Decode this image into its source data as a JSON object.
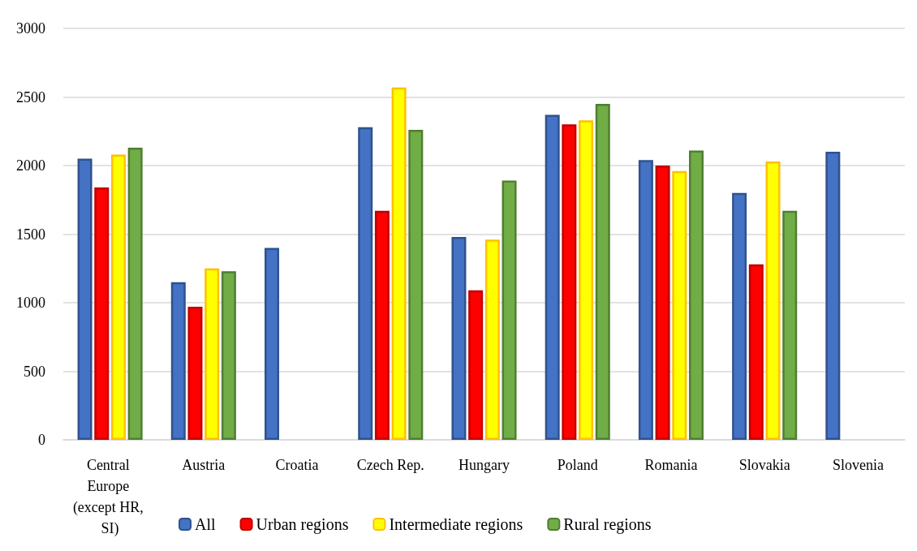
{
  "chart_data": {
    "type": "bar",
    "categories": [
      "Central Europe (except HR, SI)",
      "Austria",
      "Croatia",
      "Czech Rep.",
      "Hungary",
      "Poland",
      "Romania",
      "Slovakia",
      "Slovenia"
    ],
    "series": [
      {
        "name": "All",
        "color": "#4472c4",
        "values": [
          2050,
          1150,
          1400,
          2280,
          1480,
          2370,
          2040,
          1800,
          2100
        ]
      },
      {
        "name": "Urban regions",
        "color": "#ff0000",
        "values": [
          1840,
          970,
          null,
          1670,
          1090,
          2300,
          2000,
          1280,
          null
        ]
      },
      {
        "name": "Intermediate regions",
        "color": "#ffff00",
        "values": [
          2080,
          1250,
          null,
          2570,
          1460,
          2330,
          1960,
          2030,
          null
        ]
      },
      {
        "name": "Rural regions",
        "color": "#70ad47",
        "values": [
          2130,
          1230,
          null,
          2260,
          1890,
          2450,
          2110,
          1670,
          null
        ]
      }
    ],
    "ylim": [
      0,
      3000
    ],
    "yticks": [
      0,
      500,
      1000,
      1500,
      2000,
      2500,
      3000
    ],
    "grid": "y",
    "legend": "bottom"
  }
}
